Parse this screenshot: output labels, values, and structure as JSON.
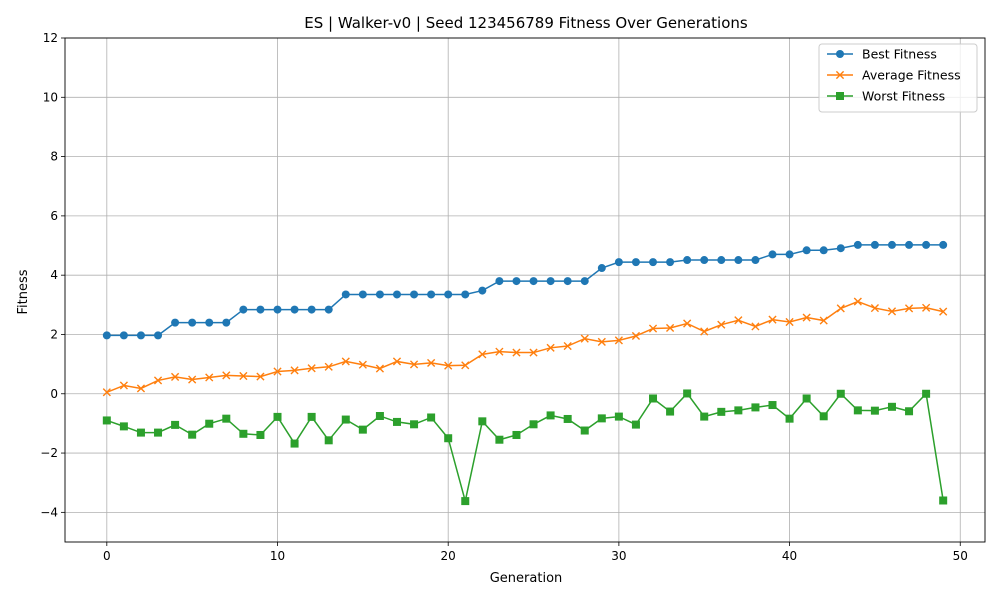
{
  "chart_data": {
    "type": "line",
    "title": "ES | Walker-v0 | Seed 123456789 Fitness Over Generations",
    "xlabel": "Generation",
    "ylabel": "Fitness",
    "xlim": [
      -2.45,
      51.45
    ],
    "ylim": [
      -5,
      12
    ],
    "xticks": [
      0,
      10,
      20,
      30,
      40,
      50
    ],
    "yticks": [
      -4,
      -2,
      0,
      2,
      4,
      6,
      8,
      10,
      12
    ],
    "grid": true,
    "legend_position": "top-right",
    "x": [
      0,
      1,
      2,
      3,
      4,
      5,
      6,
      7,
      8,
      9,
      10,
      11,
      12,
      13,
      14,
      15,
      16,
      17,
      18,
      19,
      20,
      21,
      22,
      23,
      24,
      25,
      26,
      27,
      28,
      29,
      30,
      31,
      32,
      33,
      34,
      35,
      36,
      37,
      38,
      39,
      40,
      41,
      42,
      43,
      44,
      45,
      46,
      47,
      48,
      49
    ],
    "series": [
      {
        "name": "Best Fitness",
        "color": "#1f77b4",
        "marker": "circle",
        "values": [
          1.97,
          1.97,
          1.97,
          1.97,
          2.4,
          2.4,
          2.4,
          2.4,
          2.84,
          2.84,
          2.84,
          2.84,
          2.84,
          2.84,
          3.35,
          3.35,
          3.35,
          3.35,
          3.35,
          3.35,
          3.35,
          3.35,
          3.48,
          3.8,
          3.8,
          3.8,
          3.8,
          3.8,
          3.8,
          4.24,
          4.44,
          4.44,
          4.44,
          4.44,
          4.51,
          4.51,
          4.51,
          4.51,
          4.51,
          4.7,
          4.7,
          4.84,
          4.84,
          4.91,
          5.02,
          5.02,
          5.02,
          5.02,
          5.02,
          5.02
        ]
      },
      {
        "name": "Average Fitness",
        "color": "#ff7f0e",
        "marker": "x",
        "values": [
          0.05,
          0.28,
          0.18,
          0.45,
          0.57,
          0.48,
          0.55,
          0.62,
          0.6,
          0.58,
          0.75,
          0.79,
          0.86,
          0.91,
          1.09,
          0.98,
          0.85,
          1.09,
          0.99,
          1.04,
          0.95,
          0.96,
          1.33,
          1.42,
          1.39,
          1.39,
          1.55,
          1.61,
          1.86,
          1.75,
          1.8,
          1.95,
          2.2,
          2.22,
          2.37,
          2.1,
          2.33,
          2.48,
          2.27,
          2.5,
          2.42,
          2.57,
          2.47,
          2.88,
          3.11,
          2.89,
          2.78,
          2.88,
          2.9,
          2.77
        ]
      },
      {
        "name": "Worst Fitness",
        "color": "#2ca02c",
        "marker": "square",
        "values": [
          -0.9,
          -1.1,
          -1.31,
          -1.31,
          -1.05,
          -1.38,
          -1.01,
          -0.84,
          -1.35,
          -1.39,
          -0.78,
          -1.68,
          -0.78,
          -1.57,
          -0.87,
          -1.21,
          -0.75,
          -0.95,
          -1.03,
          -0.8,
          -1.5,
          -3.62,
          -0.93,
          -1.55,
          -1.39,
          -1.03,
          -0.73,
          -0.85,
          -1.24,
          -0.83,
          -0.77,
          -1.04,
          -0.16,
          -0.6,
          0.01,
          -0.77,
          -0.61,
          -0.56,
          -0.46,
          -0.38,
          -0.84,
          -0.16,
          -0.76,
          0.0,
          -0.56,
          -0.57,
          -0.44,
          -0.59,
          0.0,
          -3.6
        ]
      }
    ]
  }
}
